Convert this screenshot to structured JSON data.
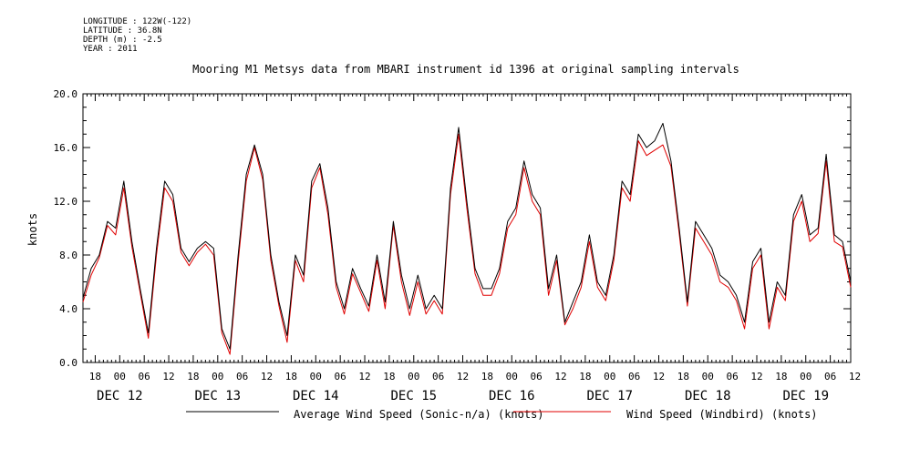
{
  "meta": {
    "longitude": "LONGITUDE : 122W(-122)",
    "latitude": "LATITUDE : 36.8N",
    "depth": "DEPTH (m) : -2.5",
    "year": "YEAR : 2011"
  },
  "chart_data": {
    "type": "line",
    "title": "Mooring M1 Metsys data from MBARI instrument id 1396 at original sampling intervals",
    "ylabel": "knots",
    "xlabel": "",
    "xlim_hours": [
      -9,
      179
    ],
    "ylim": [
      0,
      20
    ],
    "yticks": [
      "0.0",
      "4.0",
      "8.0",
      "12.0",
      "16.0",
      "20.0"
    ],
    "x_hour_ticks": [
      "18",
      "00",
      "06",
      "12",
      "18",
      "00",
      "06",
      "12",
      "18",
      "00",
      "06",
      "12",
      "18",
      "00",
      "06",
      "12",
      "18",
      "00",
      "06",
      "12",
      "18",
      "00",
      "06",
      "12",
      "18",
      "00",
      "06",
      "12",
      "18",
      "00",
      "06",
      "12"
    ],
    "x_day_labels": [
      "DEC 12",
      "DEC 13",
      "DEC 14",
      "DEC 15",
      "DEC 16",
      "DEC 17",
      "DEC 18",
      "DEC 19"
    ],
    "grid": false,
    "legend_position": "bottom",
    "series": [
      {
        "name": "Average Wind Speed (Sonic-n/a) (knots)",
        "color": "#000000",
        "x": [
          -9,
          -7,
          -5,
          -3,
          -1,
          1,
          3,
          5,
          7,
          9,
          11,
          13,
          15,
          17,
          19,
          21,
          23,
          25,
          27,
          29,
          31,
          33,
          35,
          37,
          39,
          41,
          43,
          45,
          47,
          49,
          51,
          53,
          55,
          57,
          59,
          61,
          63,
          65,
          67,
          69,
          71,
          73,
          75,
          77,
          79,
          81,
          83,
          85,
          87,
          89,
          91,
          93,
          95,
          97,
          99,
          101,
          103,
          105,
          107,
          109,
          111,
          113,
          115,
          117,
          119,
          121,
          123,
          125,
          127,
          129,
          131,
          133,
          135,
          137,
          139,
          141,
          143,
          145,
          147,
          149,
          151,
          153,
          155,
          157,
          159,
          161,
          163,
          165,
          167,
          169,
          171,
          173,
          175,
          177,
          179
        ],
        "y": [
          4.8,
          7.0,
          8.0,
          10.5,
          10.0,
          13.5,
          9.0,
          5.5,
          2.2,
          8.5,
          13.5,
          12.5,
          8.5,
          7.5,
          8.5,
          9.0,
          8.5,
          2.5,
          1.0,
          8.0,
          14.0,
          16.2,
          14.0,
          8.0,
          4.5,
          2.0,
          8.0,
          6.5,
          13.5,
          14.8,
          11.5,
          6.0,
          4.0,
          7.0,
          5.5,
          4.2,
          8.0,
          4.5,
          10.5,
          6.5,
          4.0,
          6.5,
          4.0,
          5.0,
          4.0,
          13.0,
          17.5,
          12.0,
          7.0,
          5.5,
          5.5,
          7.0,
          10.5,
          11.5,
          15.0,
          12.5,
          11.5,
          5.5,
          8.0,
          3.0,
          4.5,
          6.0,
          9.5,
          6.0,
          5.0,
          8.0,
          13.5,
          12.5,
          17.0,
          16.0,
          16.5,
          17.8,
          15.0,
          10.0,
          4.5,
          10.5,
          9.5,
          8.5,
          6.5,
          6.0,
          5.0,
          3.0,
          7.5,
          8.5,
          3.0,
          6.0,
          5.0,
          11.0,
          12.5,
          9.5,
          10.0,
          15.5,
          9.5,
          9.0,
          6.0
        ]
      },
      {
        "name": "Wind Speed (Windbird) (knots)",
        "color": "#e00000",
        "x": [
          -9,
          -7,
          -5,
          -3,
          -1,
          1,
          3,
          5,
          7,
          9,
          11,
          13,
          15,
          17,
          19,
          21,
          23,
          25,
          27,
          29,
          31,
          33,
          35,
          37,
          39,
          41,
          43,
          45,
          47,
          49,
          51,
          53,
          55,
          57,
          59,
          61,
          63,
          65,
          67,
          69,
          71,
          73,
          75,
          77,
          79,
          81,
          83,
          85,
          87,
          89,
          91,
          93,
          95,
          97,
          99,
          101,
          103,
          105,
          107,
          109,
          111,
          113,
          115,
          117,
          119,
          121,
          123,
          125,
          127,
          129,
          131,
          133,
          135,
          137,
          139,
          141,
          143,
          145,
          147,
          149,
          151,
          153,
          155,
          157,
          159,
          161,
          163,
          165,
          167,
          169,
          171,
          173,
          175,
          177,
          179
        ],
        "y": [
          4.5,
          6.5,
          7.8,
          10.2,
          9.5,
          13.0,
          8.6,
          5.2,
          1.8,
          8.0,
          13.0,
          12.0,
          8.2,
          7.2,
          8.2,
          8.8,
          8.0,
          2.2,
          0.6,
          7.5,
          13.5,
          16.0,
          13.6,
          7.6,
          4.2,
          1.5,
          7.6,
          6.0,
          13.0,
          14.5,
          11.0,
          5.6,
          3.6,
          6.6,
          5.2,
          3.8,
          7.6,
          4.0,
          10.2,
          6.0,
          3.5,
          6.0,
          3.6,
          4.6,
          3.6,
          12.5,
          17.0,
          11.5,
          6.6,
          5.0,
          5.0,
          6.6,
          10.0,
          11.0,
          14.5,
          12.0,
          11.0,
          5.0,
          7.6,
          2.8,
          4.0,
          5.6,
          9.0,
          5.6,
          4.6,
          7.6,
          13.0,
          12.0,
          16.5,
          15.4,
          15.8,
          16.2,
          14.6,
          9.6,
          4.2,
          10.0,
          9.0,
          8.0,
          6.0,
          5.6,
          4.6,
          2.5,
          7.0,
          8.0,
          2.5,
          5.6,
          4.6,
          10.5,
          12.0,
          9.0,
          9.6,
          15.0,
          9.0,
          8.6,
          5.6
        ]
      }
    ]
  }
}
